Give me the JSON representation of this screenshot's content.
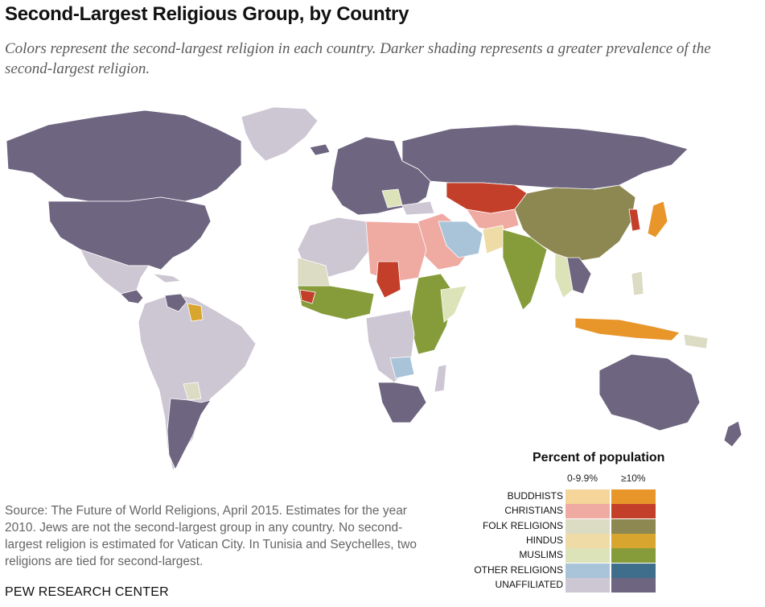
{
  "header": {
    "title": "Second-Largest Religious Group, by Country",
    "subtitle": "Colors represent the second-largest religion in each country. Darker shading represents a greater prevalence of the second-largest religion."
  },
  "legend": {
    "title": "Percent of population",
    "col_low": "0-9.9%",
    "col_high": "≥10%",
    "rows": [
      {
        "label": "BUDDHISTS",
        "low": "#f6d59a",
        "high": "#e8962a"
      },
      {
        "label": "CHRISTIANS",
        "low": "#efaaa2",
        "high": "#c33f2a"
      },
      {
        "label": "FOLK RELIGIONS",
        "low": "#dcdbc4",
        "high": "#8d8752"
      },
      {
        "label": "HINDUS",
        "low": "#efdba6",
        "high": "#d8a52e"
      },
      {
        "label": "MUSLIMS",
        "low": "#dce3b8",
        "high": "#869c3a"
      },
      {
        "label": "OTHER RELIGIONS",
        "low": "#a9c4d8",
        "high": "#3e6e8c"
      },
      {
        "label": "UNAFFILIATED",
        "low": "#cdc6d3",
        "high": "#6e6580"
      }
    ]
  },
  "footer": {
    "source": "Source: The Future of World Religions, April 2015. Estimates for the year 2010. Jews are not the second-largest group in any country. No second-largest religion is estimated for Vatican City. In Tunisia and Seychelles, two religions are tied for second-largest.",
    "credit": "PEW RESEARCH CENTER"
  }
}
